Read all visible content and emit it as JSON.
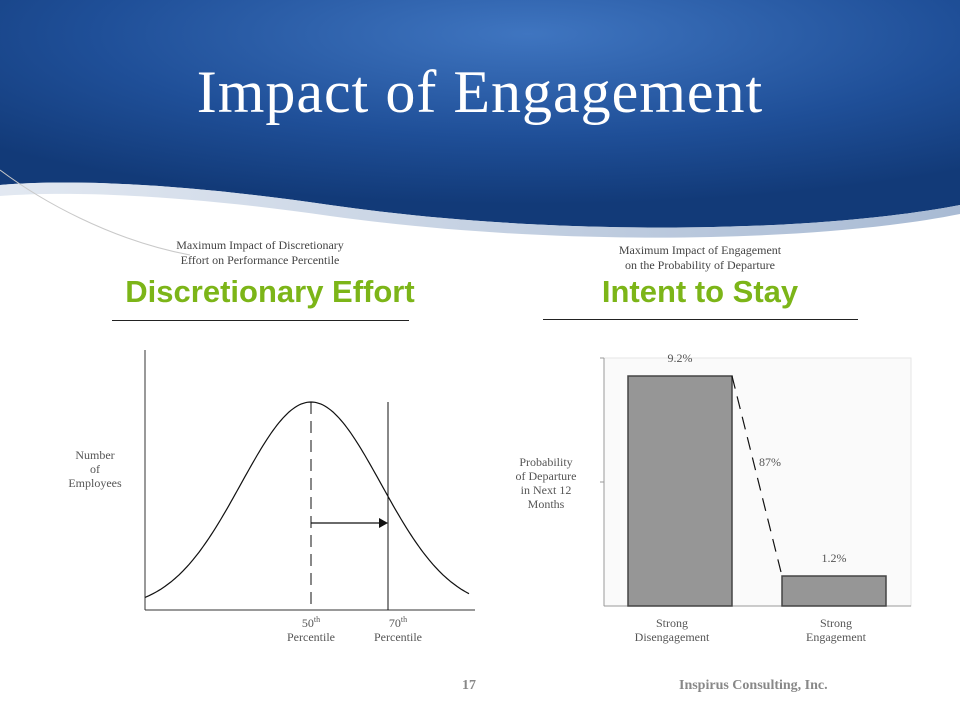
{
  "slide": {
    "title": "Impact of Engagement",
    "page_number": "17",
    "company": "Inspirus Consulting, Inc.",
    "colors": {
      "header_blue": "#1e4f99",
      "heading_green": "#7cb518",
      "bar_gray": "#969696"
    }
  },
  "left_panel": {
    "subtitle_line1": "Maximum Impact of Discretionary",
    "subtitle_line2": "Effort on Performance Percentile",
    "heading": "Discretionary Effort",
    "ylabel_line1": "Number",
    "ylabel_line2": "of",
    "ylabel_line3": "Employees",
    "tick1_num": "50",
    "tick1_sup": "th",
    "tick1_word": "Percentile",
    "tick2_num": "70",
    "tick2_sup": "th",
    "tick2_word": "Percentile"
  },
  "right_panel": {
    "subtitle_line1": "Maximum Impact of Engagement",
    "subtitle_line2": "on the Probability of Departure",
    "heading": "Intent to Stay",
    "ylabel_line1": "Probability",
    "ylabel_line2": "of Departure",
    "ylabel_line3": "in Next 12",
    "ylabel_line4": "Months",
    "cat1_line1": "Strong",
    "cat1_line2": "Disengagement",
    "cat2_line1": "Strong",
    "cat2_line2": "Engagement",
    "drop_label": "87%"
  },
  "chart_data": [
    {
      "type": "area",
      "title": "Discretionary Effort",
      "ylabel": "Number of Employees",
      "distribution": "normal",
      "markers": [
        {
          "label": "50th Percentile",
          "percentile": 50
        },
        {
          "label": "70th Percentile",
          "percentile": 70
        }
      ]
    },
    {
      "type": "bar",
      "title": "Intent to Stay",
      "ylabel": "Probability of Departure in Next 12 Months",
      "categories": [
        "Strong Disengagement",
        "Strong Engagement"
      ],
      "values": [
        9.2,
        1.2
      ],
      "data_labels": [
        "9.2%",
        "1.2%"
      ],
      "ylim": [
        0,
        10
      ],
      "annotation": "87%"
    }
  ]
}
